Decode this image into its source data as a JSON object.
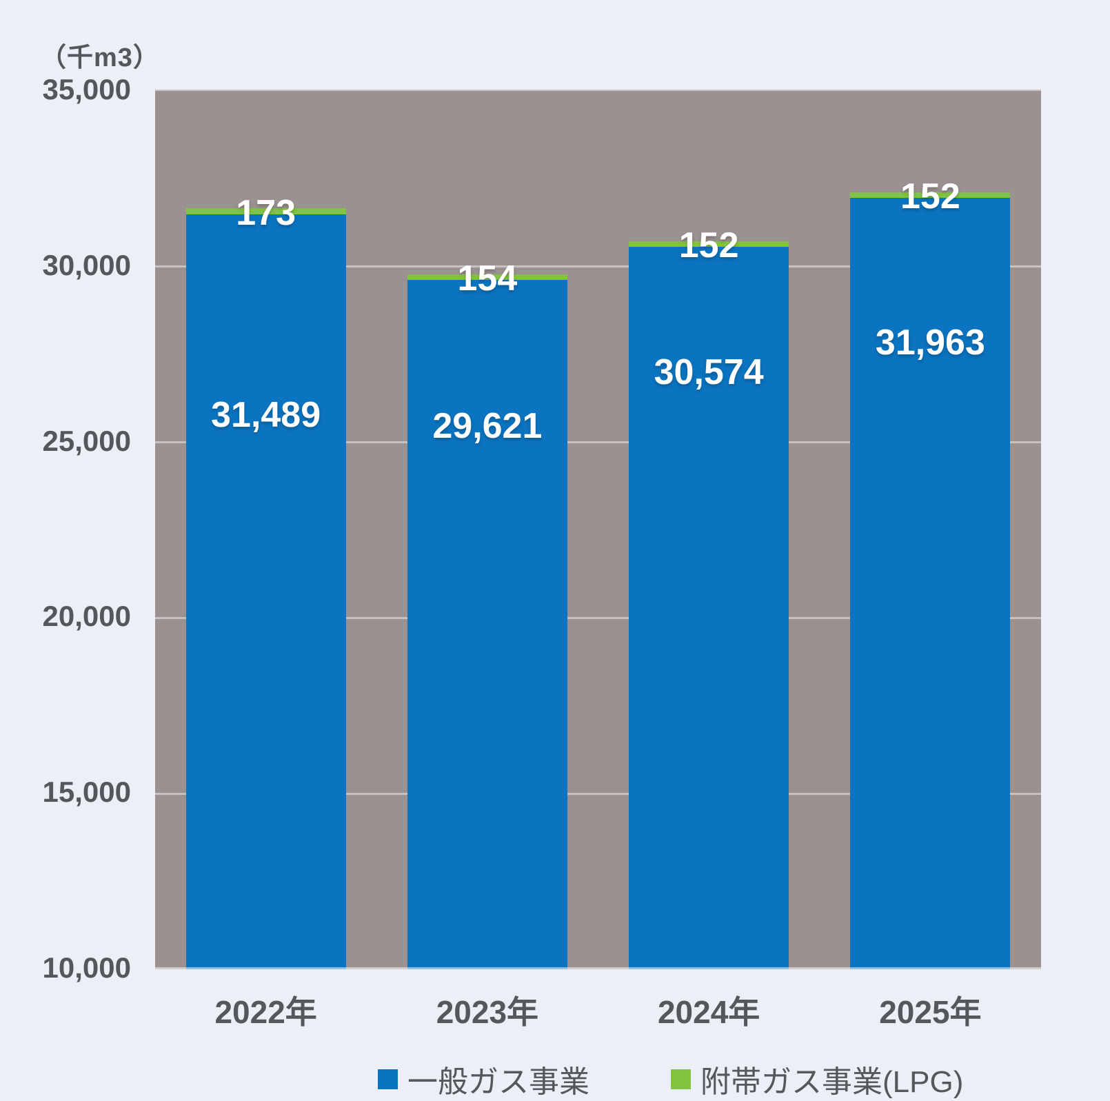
{
  "unit_label": "（千m3）",
  "colors": {
    "general_gas": "#0b74c0",
    "lpg": "#82c341",
    "plot_background": "#9a9190",
    "page_background": "#edeff6",
    "axis_text": "#54575c",
    "value_text": "#ffffff"
  },
  "chart_data": {
    "type": "bar",
    "stacked": true,
    "title": "",
    "unit": "（千m3）",
    "categories": [
      "2022年",
      "2023年",
      "2024年",
      "2025年"
    ],
    "series": [
      {
        "name": "一般ガス事業",
        "color_key": "general_gas",
        "values": [
          31489,
          29621,
          30574,
          31963
        ],
        "labels": [
          "31,489",
          "29,621",
          "30,574",
          "31,963"
        ]
      },
      {
        "name": "附帯ガス事業(LPG)",
        "color_key": "lpg",
        "values": [
          173,
          154,
          152,
          152
        ],
        "labels": [
          "173",
          "154",
          "152",
          "152"
        ]
      }
    ],
    "ylim": [
      10000,
      35000
    ],
    "yticks": [
      35000,
      30000,
      25000,
      20000,
      15000,
      10000
    ],
    "ytick_labels": [
      "35,000",
      "30,000",
      "25,000",
      "20,000",
      "15,000",
      "10,000"
    ],
    "grid": true,
    "legend_position": "bottom"
  },
  "legend": {
    "items": [
      {
        "label": "一般ガス事業",
        "color_key": "general_gas"
      },
      {
        "label": "附帯ガス事業(LPG)",
        "color_key": "lpg"
      }
    ]
  }
}
